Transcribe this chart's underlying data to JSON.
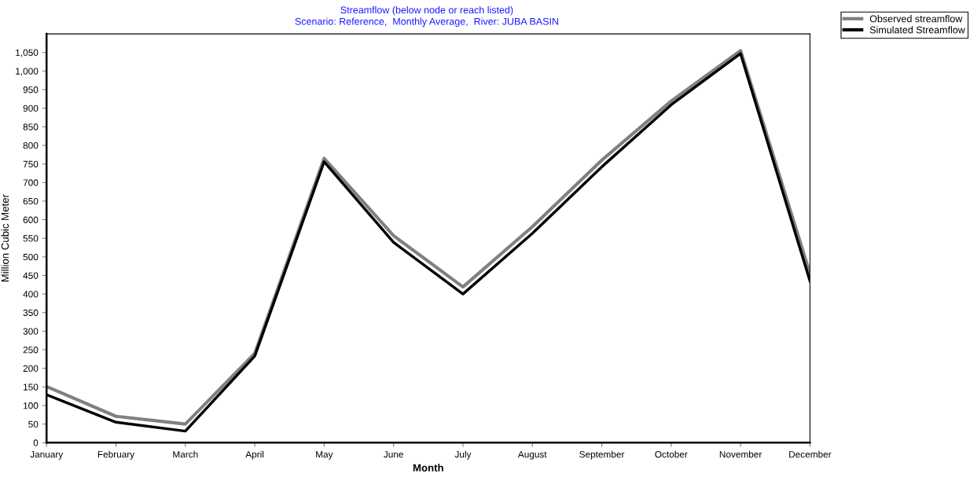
{
  "chart_data": {
    "type": "line",
    "title": "Streamflow (below node or reach listed)",
    "subtitle": "Scenario: Reference,  Monthly Average,  River: JUBA BASIN",
    "xlabel": "Month",
    "ylabel": "Million Cubic Meter",
    "categories": [
      "January",
      "February",
      "March",
      "April",
      "May",
      "June",
      "July",
      "August",
      "September",
      "October",
      "November",
      "December"
    ],
    "series": [
      {
        "name": "Observed streamflow",
        "color": "#808080",
        "values": [
          151,
          71,
          50,
          240,
          765,
          557,
          419,
          581,
          760,
          919,
          1055,
          455
        ]
      },
      {
        "name": "Simulated Streamflow",
        "color": "#000000",
        "values": [
          129,
          55,
          31,
          233,
          756,
          539,
          400,
          563,
          742,
          909,
          1047,
          435
        ]
      }
    ],
    "ylim": [
      0,
      1100
    ],
    "yticks": [
      0,
      50,
      100,
      150,
      200,
      250,
      300,
      350,
      400,
      450,
      500,
      550,
      600,
      650,
      700,
      750,
      800,
      850,
      900,
      950,
      {
        "value": 1000,
        "label": "1,000"
      },
      {
        "value": 1050,
        "label": "1,050"
      }
    ],
    "grid": false,
    "legend": "top right",
    "marker": "none",
    "line_style": "solid"
  }
}
